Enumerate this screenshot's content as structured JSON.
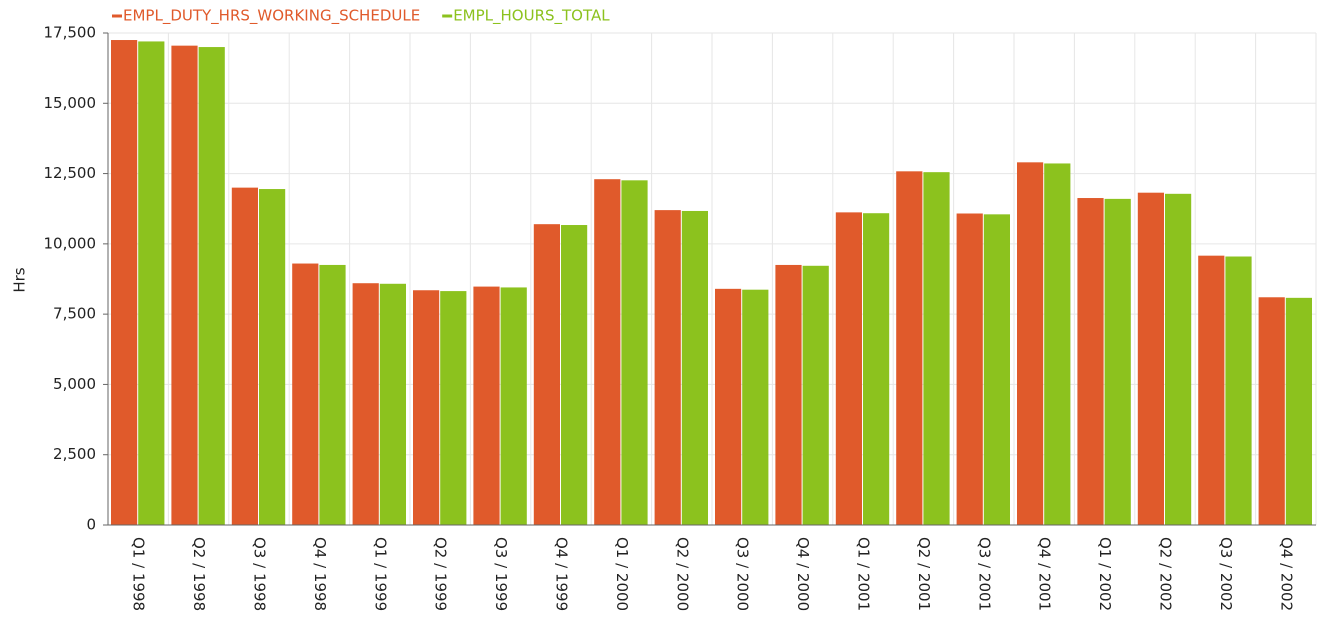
{
  "chart_data": {
    "type": "bar",
    "y_label": "Hrs",
    "categories": [
      "Q1 / 1998",
      "Q2 / 1998",
      "Q3 / 1998",
      "Q4 / 1998",
      "Q1 / 1999",
      "Q2 / 1999",
      "Q3 / 1999",
      "Q4 / 1999",
      "Q1 / 2000",
      "Q2 / 2000",
      "Q3 / 2000",
      "Q4 / 2000",
      "Q1 / 2001",
      "Q2 / 2001",
      "Q3 / 2001",
      "Q4 / 2001",
      "Q1 / 2002",
      "Q2 / 2002",
      "Q3 / 2002",
      "Q4 / 2002"
    ],
    "series": [
      {
        "name": "EMPL_DUTY_HRS_WORKING_SCHEDULE",
        "color": "#e05a2b",
        "values": [
          17250,
          17050,
          12000,
          9300,
          8600,
          8350,
          8480,
          10700,
          12300,
          11200,
          8400,
          9250,
          11120,
          12580,
          11080,
          12900,
          11630,
          11820,
          9580,
          8100
        ]
      },
      {
        "name": "EMPL_HOURS_TOTAL",
        "color": "#8cc21e",
        "values": [
          17200,
          17000,
          11950,
          9250,
          8580,
          8320,
          8450,
          10670,
          12260,
          11170,
          8370,
          9220,
          11090,
          12550,
          11050,
          12860,
          11600,
          11780,
          9550,
          8080
        ]
      }
    ],
    "ylim": [
      0,
      17500
    ],
    "yticks": [
      0,
      {
        "value": 2500,
        "label": "2,500"
      },
      {
        "value": 5000,
        "label": "5,000"
      },
      {
        "value": 7500,
        "label": "7,500"
      },
      {
        "value": 10000,
        "label": "10,000"
      },
      {
        "value": 12500,
        "label": "12,500"
      },
      {
        "value": 15000,
        "label": "15,000"
      },
      {
        "value": 17500,
        "label": "17,500"
      }
    ],
    "grid": true,
    "legend": "top-left"
  }
}
